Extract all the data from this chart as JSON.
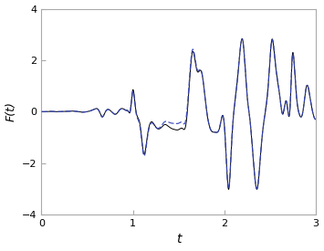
{
  "title": "",
  "xlabel": "t",
  "ylabel": "F(t)",
  "xlim": [
    0,
    3
  ],
  "ylim": [
    -4,
    4
  ],
  "yticks": [
    -4,
    -2,
    0,
    2,
    4
  ],
  "xticks": [
    0,
    1,
    2,
    3
  ],
  "black_line_color": "#000000",
  "blue_line_color": "#3344bb",
  "figsize": [
    3.55,
    2.75
  ],
  "dpi": 100,
  "spine_color": "#aaaaaa",
  "tick_labelsize": 8,
  "xlabel_fontsize": 10,
  "ylabel_fontsize": 9
}
